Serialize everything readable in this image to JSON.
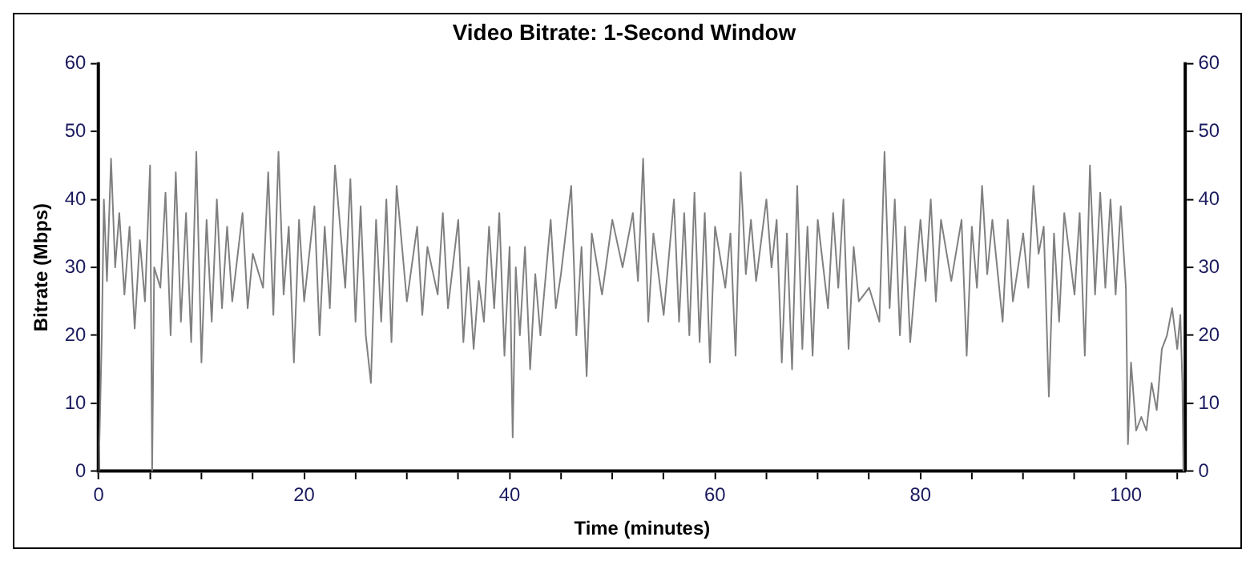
{
  "chart_data": {
    "type": "line",
    "title": "Video Bitrate: 1-Second Window",
    "xlabel": "Time (minutes)",
    "ylabel": "Bitrate (Mbps)",
    "series": [
      {
        "color": "#808080",
        "x": [
          0,
          0.3,
          0.5,
          0.8,
          1.2,
          1.6,
          2,
          2.5,
          3,
          3.5,
          4,
          4.5,
          5,
          5.2,
          5.4,
          6,
          6.5,
          7,
          7.5,
          8,
          8.5,
          9,
          9.5,
          10,
          10.5,
          11,
          11.5,
          12,
          12.5,
          13,
          14,
          14.5,
          15,
          16,
          16.5,
          17,
          17.5,
          18,
          18.5,
          19,
          19.5,
          20,
          21,
          21.5,
          22,
          22.5,
          23,
          24,
          24.5,
          25,
          25.5,
          26,
          26.5,
          27,
          27.5,
          28,
          28.5,
          29,
          30,
          31,
          31.5,
          32,
          33,
          33.5,
          34,
          35,
          35.5,
          36,
          36.5,
          37,
          37.5,
          38,
          38.5,
          39,
          39.5,
          40,
          40.3,
          40.6,
          41,
          41.5,
          42,
          42.5,
          43,
          44,
          44.5,
          45,
          46,
          46.5,
          47,
          47.5,
          48,
          49,
          50,
          51,
          52,
          52.5,
          53,
          53.5,
          54,
          55,
          56,
          56.5,
          57,
          57.5,
          58,
          58.5,
          59,
          59.5,
          60,
          61,
          61.5,
          62,
          62.5,
          63,
          63.5,
          64,
          65,
          65.5,
          66,
          66.5,
          67,
          67.5,
          68,
          68.5,
          69,
          69.5,
          70,
          71,
          71.5,
          72,
          72.5,
          73,
          73.5,
          74,
          75,
          76,
          76.5,
          77,
          77.5,
          78,
          78.5,
          79,
          80,
          80.5,
          81,
          81.5,
          82,
          83,
          84,
          84.5,
          85,
          85.5,
          86,
          86.5,
          87,
          88,
          88.5,
          89,
          90,
          90.5,
          91,
          91.5,
          92,
          92.5,
          93,
          93.5,
          94,
          95,
          95.5,
          96,
          96.5,
          97,
          97.5,
          98,
          98.5,
          99,
          99.5,
          100,
          100.2,
          100.5,
          101,
          101.5,
          102,
          102.5,
          103,
          103.5,
          104,
          104.5,
          105,
          105.3,
          105.5,
          105.6
        ],
        "values": [
          0,
          20,
          40,
          28,
          46,
          30,
          38,
          26,
          36,
          21,
          34,
          25,
          45,
          0,
          30,
          27,
          41,
          20,
          44,
          22,
          38,
          19,
          47,
          16,
          37,
          22,
          40,
          24,
          36,
          25,
          38,
          24,
          32,
          27,
          44,
          23,
          47,
          26,
          36,
          16,
          37,
          25,
          39,
          20,
          36,
          24,
          45,
          27,
          43,
          22,
          39,
          20,
          13,
          37,
          22,
          40,
          19,
          42,
          25,
          36,
          23,
          33,
          26,
          38,
          24,
          37,
          19,
          30,
          18,
          28,
          22,
          36,
          24,
          38,
          17,
          33,
          5,
          30,
          20,
          33,
          15,
          29,
          20,
          37,
          24,
          29,
          42,
          20,
          33,
          14,
          35,
          26,
          37,
          30,
          38,
          28,
          46,
          22,
          35,
          23,
          40,
          22,
          38,
          20,
          41,
          19,
          38,
          16,
          36,
          27,
          35,
          17,
          44,
          29,
          37,
          28,
          40,
          30,
          37,
          16,
          35,
          15,
          42,
          18,
          36,
          17,
          37,
          24,
          38,
          27,
          40,
          18,
          33,
          25,
          27,
          22,
          47,
          24,
          40,
          20,
          36,
          19,
          37,
          28,
          40,
          25,
          37,
          28,
          37,
          17,
          36,
          27,
          42,
          29,
          37,
          22,
          37,
          25,
          35,
          27,
          42,
          32,
          36,
          11,
          35,
          22,
          38,
          26,
          38,
          17,
          45,
          26,
          41,
          27,
          40,
          26,
          39,
          27,
          4,
          16,
          6,
          8,
          6,
          13,
          9,
          18,
          20,
          24,
          18,
          23,
          13,
          0
        ]
      }
    ],
    "xlim": [
      0,
      105.8
    ],
    "xticks": [
      0,
      {
        "value": 5,
        "label": null
      },
      {
        "value": 10,
        "label": null
      },
      {
        "value": 15,
        "label": null
      },
      20,
      {
        "value": 25,
        "label": null
      },
      {
        "value": 30,
        "label": null
      },
      {
        "value": 35,
        "label": null
      },
      40,
      {
        "value": 45,
        "label": null
      },
      {
        "value": 50,
        "label": null
      },
      {
        "value": 55,
        "label": null
      },
      60,
      {
        "value": 65,
        "label": null
      },
      {
        "value": 70,
        "label": null
      },
      {
        "value": 75,
        "label": null
      },
      80,
      {
        "value": 85,
        "label": null
      },
      {
        "value": 90,
        "label": null
      },
      {
        "value": 95,
        "label": null
      },
      100,
      {
        "value": 105,
        "label": null
      }
    ],
    "ylim": [
      0,
      60
    ],
    "yticks": [
      0,
      10,
      20,
      30,
      40,
      50,
      60
    ],
    "y2lim": [
      0,
      60
    ],
    "y2ticks": [
      0,
      10,
      20,
      30,
      40,
      50,
      60
    ],
    "grid": false,
    "legend": false,
    "marker": "none",
    "line_style": "solid"
  }
}
